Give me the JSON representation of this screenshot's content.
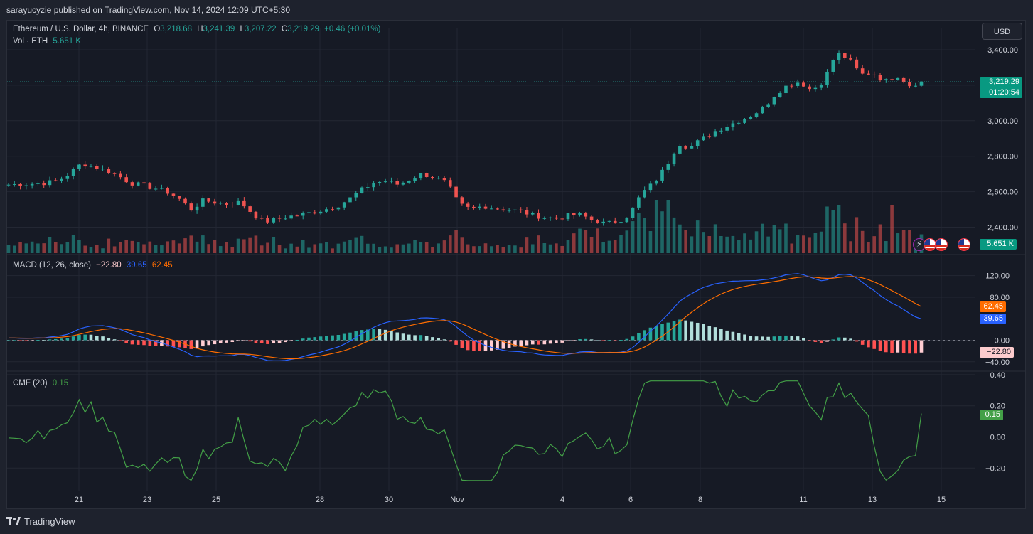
{
  "header": {
    "publish_line": "sarayucyzie published on TradingView.com, Nov 14, 2024 12:09 UTC+5:30"
  },
  "legend": {
    "symbol": "Ethereum / U.S. Dollar, 4h, BINANCE",
    "open_label": "O",
    "open": "3,218.68",
    "high_label": "H",
    "high": "3,241.39",
    "low_label": "L",
    "low": "3,207.22",
    "close_label": "C",
    "close": "3,219.29",
    "change": "+0.46 (+0.01%)",
    "vol_label": "Vol · ETH",
    "vol_value": "5.651 K",
    "macd_label": "MACD (12, 26, close)",
    "macd_hist": "−22.80",
    "macd_line": "39.65",
    "macd_signal": "62.45",
    "cmf_label": "CMF (20)",
    "cmf_value": "0.15"
  },
  "currency_button": "USD",
  "price_axis": {
    "ticks": [
      "3,400.00",
      "3,000.00",
      "2,800.00",
      "2,600.00",
      "2,400.00"
    ],
    "current_price": "3,219.29",
    "countdown": "01:20:54",
    "volume_label": "5.651 K"
  },
  "macd_axis": {
    "ticks": [
      "120.00",
      "80.00",
      "0.00",
      "−40.00"
    ],
    "signal_label": "62.45",
    "macd_label": "39.65",
    "hist_label": "−22.80"
  },
  "cmf_axis": {
    "ticks": [
      "0.40",
      "0.20",
      "0.00",
      "−0.20"
    ],
    "current_label": "0.15"
  },
  "time_axis": {
    "ticks": [
      "21",
      "23",
      "25",
      "28",
      "30",
      "Nov",
      "4",
      "6",
      "8",
      "11",
      "13",
      "15"
    ]
  },
  "footer": {
    "brand": "TradingView"
  },
  "colors": {
    "up": "#26a69a",
    "down": "#ef5350",
    "macd": "#2962ff",
    "signal": "#ff6d00",
    "cmf": "#43a047",
    "background": "#161a25"
  },
  "chart_data": [
    {
      "type": "candlestick",
      "title": "Ethereum / U.S. Dollar, 4h, BINANCE",
      "x_range": [
        "Oct 20",
        "Nov 15"
      ],
      "ylim": [
        2350,
        3470
      ],
      "close_path": [
        2640,
        2642,
        2645,
        2650,
        2660,
        2700,
        2760,
        2740,
        2720,
        2690,
        2650,
        2635,
        2620,
        2600,
        2560,
        2500,
        2550,
        2540,
        2530,
        2545,
        2480,
        2430,
        2445,
        2460,
        2470,
        2485,
        2500,
        2520,
        2560,
        2610,
        2650,
        2660,
        2640,
        2670,
        2700,
        2680,
        2650,
        2530,
        2500,
        2520,
        2505,
        2500,
        2490,
        2470,
        2455,
        2450,
        2465,
        2470,
        2440,
        2420,
        2430,
        2470,
        2590,
        2650,
        2740,
        2870,
        2850,
        2900,
        2940,
        2970,
        3000,
        3030,
        3070,
        3150,
        3200,
        3220,
        3170,
        3230,
        3380,
        3350,
        3260,
        3270,
        3220,
        3260,
        3200,
        3219.29
      ],
      "volume_last": 5651,
      "annotations": [
        "3,219.29",
        "01:20:54",
        "5.651 K"
      ]
    },
    {
      "type": "line",
      "title": "MACD (12, 26, close)",
      "ylim": [
        -55,
        145
      ],
      "series": [
        {
          "name": "MACD",
          "last": 39.65
        },
        {
          "name": "Signal",
          "last": 62.45
        },
        {
          "name": "Histogram",
          "last": -22.8
        }
      ]
    },
    {
      "type": "line",
      "title": "CMF (20)",
      "ylim": [
        -0.3,
        0.42
      ],
      "series": [
        {
          "name": "CMF",
          "last": 0.15
        }
      ]
    }
  ]
}
